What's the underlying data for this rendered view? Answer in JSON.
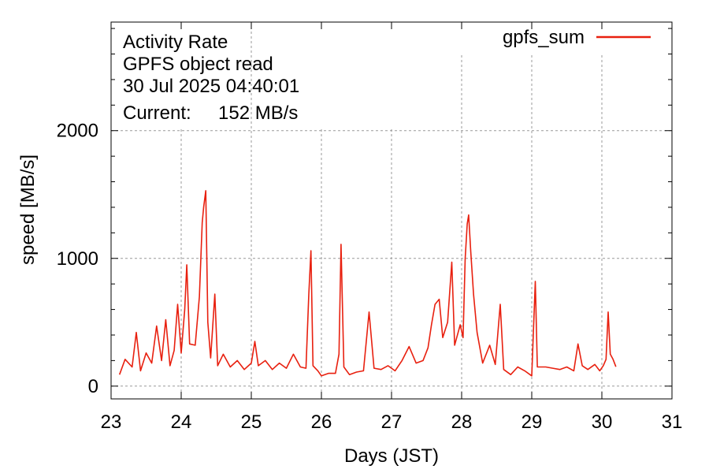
{
  "chart_data": {
    "type": "line",
    "title_lines": [
      "Activity Rate",
      "GPFS object read",
      "30 Jul 2025 04:40:01"
    ],
    "current_label": "Current:",
    "current_value": "152 MB/s",
    "xlabel": "Days (JST)",
    "ylabel": "speed [MB/s]",
    "xlim": [
      23,
      31
    ],
    "ylim": [
      -100,
      2850
    ],
    "x_ticks": [
      23,
      24,
      25,
      26,
      27,
      28,
      29,
      30,
      31
    ],
    "x_tick_labels": [
      "23",
      "24",
      "25",
      "26",
      "27",
      "28",
      "29",
      "30",
      "31"
    ],
    "y_ticks": [
      0,
      1000,
      2000
    ],
    "y_tick_labels": [
      "0",
      "1000",
      "2000"
    ],
    "y_minor_step": 200,
    "grid": true,
    "legend_position": "top-right",
    "series": [
      {
        "name": "gpfs_sum",
        "color": "#e8200f",
        "points": [
          [
            23.12,
            90
          ],
          [
            23.2,
            210
          ],
          [
            23.3,
            150
          ],
          [
            23.36,
            420
          ],
          [
            23.42,
            120
          ],
          [
            23.5,
            260
          ],
          [
            23.58,
            180
          ],
          [
            23.65,
            470
          ],
          [
            23.72,
            200
          ],
          [
            23.78,
            520
          ],
          [
            23.84,
            160
          ],
          [
            23.9,
            280
          ],
          [
            23.95,
            640
          ],
          [
            24.0,
            260
          ],
          [
            24.05,
            600
          ],
          [
            24.08,
            950
          ],
          [
            24.12,
            330
          ],
          [
            24.2,
            320
          ],
          [
            24.26,
            700
          ],
          [
            24.3,
            1280
          ],
          [
            24.32,
            1400
          ],
          [
            24.35,
            1530
          ],
          [
            24.38,
            500
          ],
          [
            24.42,
            220
          ],
          [
            24.48,
            720
          ],
          [
            24.52,
            160
          ],
          [
            24.6,
            250
          ],
          [
            24.7,
            150
          ],
          [
            24.8,
            200
          ],
          [
            24.9,
            130
          ],
          [
            25.0,
            180
          ],
          [
            25.05,
            350
          ],
          [
            25.1,
            160
          ],
          [
            25.2,
            200
          ],
          [
            25.3,
            130
          ],
          [
            25.4,
            180
          ],
          [
            25.5,
            140
          ],
          [
            25.6,
            250
          ],
          [
            25.7,
            150
          ],
          [
            25.78,
            140
          ],
          [
            25.82,
            720
          ],
          [
            25.85,
            1060
          ],
          [
            25.88,
            160
          ],
          [
            25.95,
            120
          ],
          [
            26.0,
            80
          ],
          [
            26.1,
            100
          ],
          [
            26.2,
            100
          ],
          [
            26.25,
            250
          ],
          [
            26.28,
            1110
          ],
          [
            26.32,
            150
          ],
          [
            26.4,
            90
          ],
          [
            26.5,
            110
          ],
          [
            26.6,
            120
          ],
          [
            26.68,
            580
          ],
          [
            26.75,
            140
          ],
          [
            26.85,
            130
          ],
          [
            26.95,
            160
          ],
          [
            27.05,
            120
          ],
          [
            27.15,
            200
          ],
          [
            27.25,
            310
          ],
          [
            27.35,
            180
          ],
          [
            27.45,
            200
          ],
          [
            27.52,
            300
          ],
          [
            27.57,
            480
          ],
          [
            27.62,
            640
          ],
          [
            27.68,
            680
          ],
          [
            27.73,
            380
          ],
          [
            27.8,
            500
          ],
          [
            27.86,
            970
          ],
          [
            27.9,
            320
          ],
          [
            27.98,
            480
          ],
          [
            28.02,
            380
          ],
          [
            28.05,
            1000
          ],
          [
            28.08,
            1270
          ],
          [
            28.1,
            1340
          ],
          [
            28.13,
            1050
          ],
          [
            28.17,
            720
          ],
          [
            28.22,
            420
          ],
          [
            28.3,
            180
          ],
          [
            28.4,
            320
          ],
          [
            28.48,
            170
          ],
          [
            28.55,
            640
          ],
          [
            28.6,
            130
          ],
          [
            28.7,
            90
          ],
          [
            28.8,
            150
          ],
          [
            28.9,
            120
          ],
          [
            29.0,
            80
          ],
          [
            29.05,
            820
          ],
          [
            29.08,
            150
          ],
          [
            29.2,
            150
          ],
          [
            29.3,
            140
          ],
          [
            29.4,
            130
          ],
          [
            29.5,
            150
          ],
          [
            29.6,
            120
          ],
          [
            29.66,
            330
          ],
          [
            29.72,
            160
          ],
          [
            29.8,
            130
          ],
          [
            29.9,
            170
          ],
          [
            29.97,
            120
          ],
          [
            30.02,
            160
          ],
          [
            30.06,
            210
          ],
          [
            30.09,
            580
          ],
          [
            30.12,
            250
          ],
          [
            30.16,
            210
          ],
          [
            30.2,
            152
          ]
        ]
      }
    ]
  }
}
